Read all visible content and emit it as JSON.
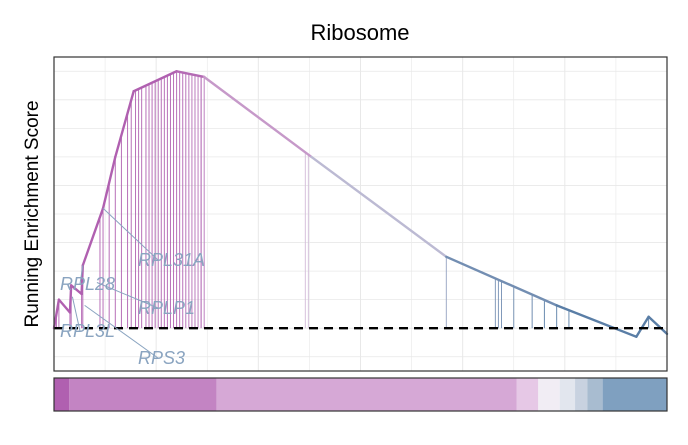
{
  "chart_data": {
    "type": "line",
    "title": "Ribosome",
    "xlabel": "",
    "ylabel": "Running Enrichment Score",
    "grid": true,
    "legend": "none",
    "xlim": [
      0,
      1
    ],
    "ylim": [
      -0.15,
      0.95
    ],
    "colors": {
      "high": "#b060b0",
      "mid": "#d9cce0",
      "low": "#5a7ea6",
      "zero_line": "#000000"
    },
    "series": [
      {
        "values": [
          {
            "x": 0.0,
            "y": 0.0
          },
          {
            "x": 0.008,
            "y": 0.1
          },
          {
            "x": 0.026,
            "y": 0.055
          },
          {
            "x": 0.028,
            "y": 0.15
          },
          {
            "x": 0.045,
            "y": 0.12
          },
          {
            "x": 0.047,
            "y": 0.22
          },
          {
            "x": 0.08,
            "y": 0.42
          },
          {
            "x": 0.1,
            "y": 0.6
          },
          {
            "x": 0.13,
            "y": 0.83
          },
          {
            "x": 0.2,
            "y": 0.9
          },
          {
            "x": 0.245,
            "y": 0.88
          },
          {
            "x": 0.42,
            "y": 0.6
          },
          {
            "x": 0.64,
            "y": 0.25
          },
          {
            "x": 0.82,
            "y": 0.08
          },
          {
            "x": 0.95,
            "y": -0.03
          },
          {
            "x": 0.97,
            "y": 0.04
          },
          {
            "x": 1.0,
            "y": -0.02
          }
        ]
      }
    ],
    "hit_ticks": [
      0.004,
      0.008,
      0.026,
      0.028,
      0.045,
      0.047,
      0.075,
      0.08,
      0.09,
      0.1,
      0.11,
      0.12,
      0.126,
      0.133,
      0.138,
      0.143,
      0.15,
      0.155,
      0.16,
      0.165,
      0.17,
      0.175,
      0.18,
      0.185,
      0.19,
      0.195,
      0.2,
      0.205,
      0.21,
      0.215,
      0.22,
      0.225,
      0.23,
      0.235,
      0.24,
      0.245,
      0.24,
      0.41,
      0.415,
      0.64,
      0.72,
      0.725,
      0.73,
      0.75,
      0.78,
      0.8,
      0.82,
      0.84,
      0.92,
      0.97
    ],
    "annotations": [
      {
        "label": "RPL28",
        "x": 0.047,
        "y": 0.22
      },
      {
        "label": "RPL31A",
        "x": 0.08,
        "y": 0.42
      },
      {
        "label": "RPLP1",
        "x": 0.07,
        "y": 0.16
      },
      {
        "label": "RPL3L",
        "x": 0.03,
        "y": 0.11
      },
      {
        "label": "RPS3",
        "x": 0.05,
        "y": 0.08
      }
    ],
    "rank_bar": [
      {
        "from": 0.0,
        "to": 0.025,
        "color": "#b060b0"
      },
      {
        "from": 0.025,
        "to": 0.265,
        "color": "#c384c3"
      },
      {
        "from": 0.265,
        "to": 0.755,
        "color": "#d6a8d6"
      },
      {
        "from": 0.755,
        "to": 0.79,
        "color": "#e6c8e6"
      },
      {
        "from": 0.79,
        "to": 0.825,
        "color": "#f1edf4"
      },
      {
        "from": 0.825,
        "to": 0.85,
        "color": "#e2e6ee"
      },
      {
        "from": 0.85,
        "to": 0.87,
        "color": "#c8d2e0"
      },
      {
        "from": 0.87,
        "to": 0.895,
        "color": "#a8bcd0"
      },
      {
        "from": 0.895,
        "to": 1.0,
        "color": "#7fa0c0"
      }
    ]
  }
}
